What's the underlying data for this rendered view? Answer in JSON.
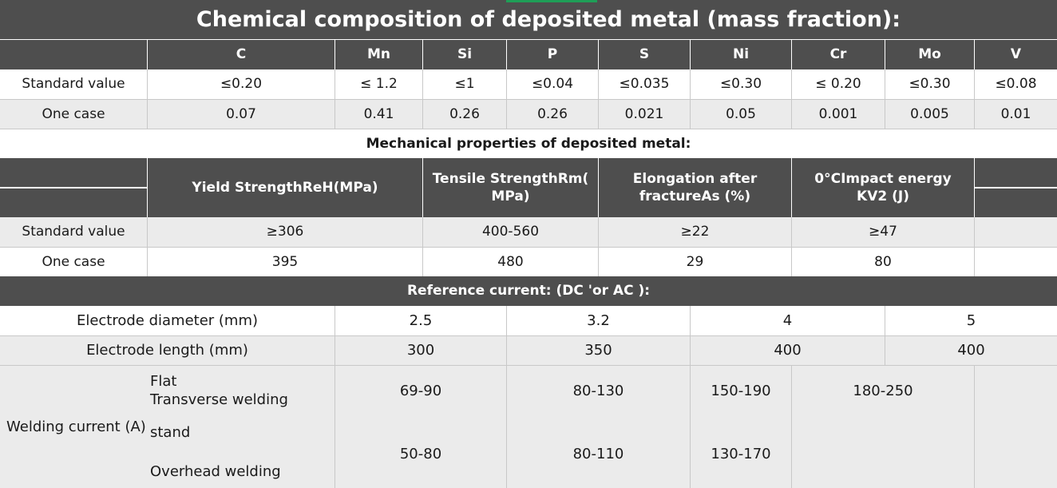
{
  "chemical": {
    "title": "Chemical composition of deposited metal (mass fraction):",
    "elements": [
      "C",
      "Mn",
      "Si",
      "P",
      "S",
      "Ni",
      "Cr",
      "Mo",
      "V"
    ],
    "standard_label": "Standard value",
    "standard_values": [
      "≤0.20",
      "≤ 1.2",
      "≤1",
      "≤0.04",
      "≤0.035",
      "≤0.30",
      "≤ 0.20",
      "≤0.30",
      "≤0.08"
    ],
    "case_label": "One case",
    "case_values": [
      "0.07",
      "0.41",
      "0.26",
      "0.26",
      "0.021",
      "0.05",
      "0.001",
      "0.005",
      "0.01"
    ]
  },
  "mechanical": {
    "title": "Mechanical properties of deposited metal:",
    "headers": [
      "Yield StrengthReH(MPa)",
      "Tensile StrengthRm( MPa)",
      "Elongation after fractureAs (%)",
      "0°CImpact energy KV2 (J)"
    ],
    "standard_label": "Standard value",
    "standard_values": [
      "≥306",
      "400-560",
      "≥22",
      "≥47"
    ],
    "case_label": "One case",
    "case_values": [
      "395",
      "480",
      "29",
      "80"
    ]
  },
  "current": {
    "title": "Reference current: (DC 'or AC ):",
    "diameter_label": "Electrode diameter (mm)",
    "diameters": [
      "2.5",
      "3.2",
      "4",
      "5"
    ],
    "length_label": "Electrode length (mm)",
    "lengths": [
      "300",
      "350",
      "400",
      "400"
    ],
    "welding_label": "Welding current (A)",
    "flat_label_1": "Flat",
    "flat_label_2": "Transverse welding",
    "flat_values": [
      "69-90",
      "80-130",
      "150-190",
      "180-250"
    ],
    "overhead_label_1": "stand",
    "overhead_label_2": "Overhead welding",
    "overhead_values": [
      "50-80",
      "80-110",
      "130-170"
    ]
  }
}
